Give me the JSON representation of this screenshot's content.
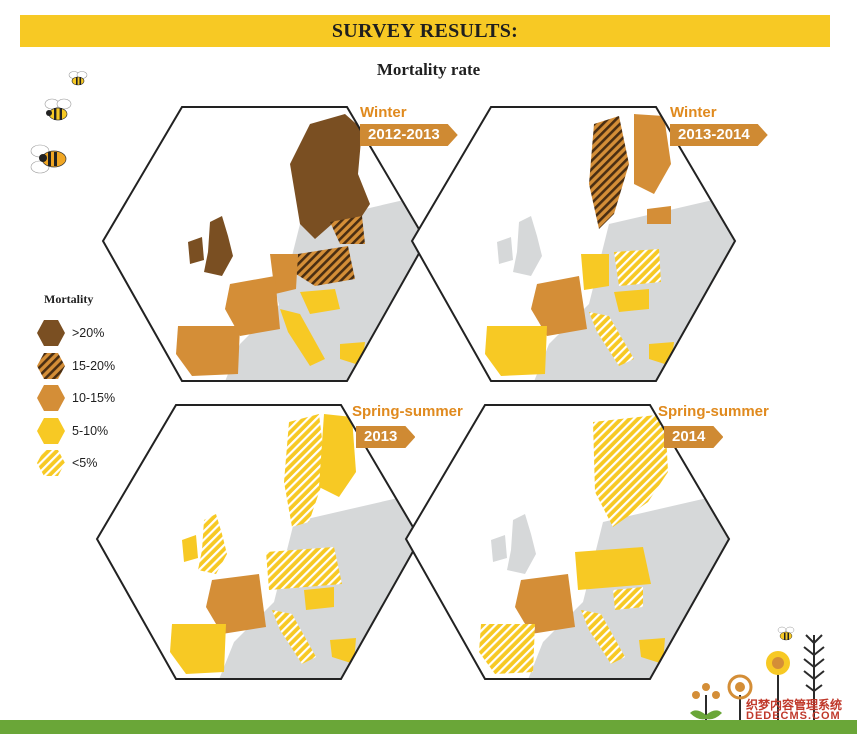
{
  "header": {
    "title": "SURVEY RESULTS:",
    "subtitle": "Mortality rate"
  },
  "legend": {
    "title": "Mortality",
    "items": [
      {
        "label": ">20%",
        "pattern": "solid",
        "color": "#7a4f22"
      },
      {
        "label": "15-20%",
        "pattern": "hatched",
        "color": "#b07a38"
      },
      {
        "label": "10-15%",
        "pattern": "solid",
        "color": "#d48e37"
      },
      {
        "label": "5-10%",
        "pattern": "solid",
        "color": "#f7c924"
      },
      {
        "label": "<5%",
        "pattern": "hatched",
        "color": "#f7c924"
      }
    ]
  },
  "maps": [
    {
      "season": "Winter",
      "period": "2012-2013"
    },
    {
      "season": "Winter",
      "period": "2013-2014"
    },
    {
      "season": "Spring-summer",
      "period": "2013"
    },
    {
      "season": "Spring-summer",
      "period": "2014"
    }
  ],
  "watermark": {
    "line1": "织梦内容管理系统",
    "line2": "DEDECMS.COM"
  },
  "colors": {
    "banner": "#f7c924",
    "land": "#d6d8d9",
    "footer_bar": "#6aa638",
    "tag": "#cf8a33"
  }
}
